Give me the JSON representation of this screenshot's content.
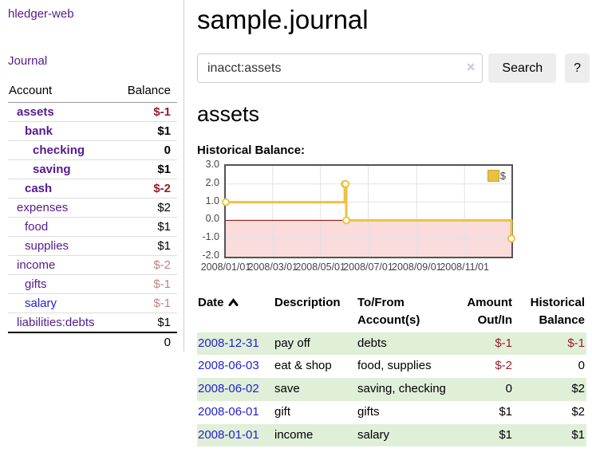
{
  "sidebar": {
    "brand": "hledger-web",
    "journal_link": "Journal",
    "table": {
      "account_header": "Account",
      "balance_header": "Balance",
      "rows": [
        {
          "name": "assets",
          "balance": "$-1",
          "depth": 1,
          "bold": true,
          "negative": true,
          "link_color": "purple"
        },
        {
          "name": "bank",
          "balance": "$1",
          "depth": 2,
          "bold": true,
          "negative": false,
          "link_color": "purple"
        },
        {
          "name": "checking",
          "balance": "0",
          "depth": 3,
          "bold": true,
          "negative": false,
          "link_color": "purple"
        },
        {
          "name": "saving",
          "balance": "$1",
          "depth": 3,
          "bold": true,
          "negative": false,
          "link_color": "purple"
        },
        {
          "name": "cash",
          "balance": "$-2",
          "depth": 2,
          "bold": true,
          "negative": true,
          "link_color": "purple"
        },
        {
          "name": "expenses",
          "balance": "$2",
          "depth": 1,
          "bold": false,
          "negative": false,
          "link_color": "purple"
        },
        {
          "name": "food",
          "balance": "$1",
          "depth": 2,
          "bold": false,
          "negative": false,
          "link_color": "purple"
        },
        {
          "name": "supplies",
          "balance": "$1",
          "depth": 2,
          "bold": false,
          "negative": false,
          "link_color": "purple"
        },
        {
          "name": "income",
          "balance": "$-2",
          "depth": 1,
          "bold": false,
          "negative": true,
          "link_color": "purple"
        },
        {
          "name": "gifts",
          "balance": "$-1",
          "depth": 2,
          "bold": false,
          "negative": true,
          "link_color": "purple"
        },
        {
          "name": "salary",
          "balance": "$-1",
          "depth": 2,
          "bold": false,
          "negative": true,
          "link_color": "blue"
        },
        {
          "name": "liabilities:debts",
          "balance": "$1",
          "depth": 1,
          "bold": false,
          "negative": false,
          "link_color": "purple"
        }
      ],
      "total": "0"
    }
  },
  "header": {
    "title": "sample.journal"
  },
  "search": {
    "query": "inacct:assets",
    "clear_icon": "×",
    "button_label": "Search",
    "help_label": "?"
  },
  "account_page": {
    "heading": "assets",
    "chart_label": "Historical Balance:"
  },
  "chart_data": {
    "type": "line",
    "step": true,
    "title": "Historical Balance",
    "series": [
      {
        "name": "$",
        "color": "#edc240",
        "points": [
          [
            "2008-01-01",
            1
          ],
          [
            "2008-06-01",
            2
          ],
          [
            "2008-06-02",
            2
          ],
          [
            "2008-06-03",
            0
          ],
          [
            "2008-12-31",
            -1
          ]
        ]
      }
    ],
    "x_range": [
      "2008-01-01",
      "2008-12-31"
    ],
    "ylim": [
      -2,
      3
    ],
    "y_ticks": [
      "3.0",
      "2.0",
      "1.0",
      "0.0",
      "-1.0",
      "-2.0"
    ],
    "x_ticks": [
      "2008/01/01",
      "2008/03/01",
      "2008/05/01",
      "2008/07/01",
      "2008/09/01",
      "2008/11/01"
    ],
    "grid": true,
    "legend_position": "top-right",
    "legend": {
      "label": "$",
      "swatch_color": "#e9c044"
    },
    "negative_region_color": "#fadcdc",
    "zero_line_color": "#8b0000",
    "grid_color": "#e2e2e2",
    "border_color": "#545454"
  },
  "transactions": {
    "headers": {
      "date": "Date",
      "description": "Description",
      "tofrom": "To/From Account(s)",
      "amount": "Amount Out/In",
      "balance": "Historical Balance"
    },
    "sort": "ascending",
    "rows": [
      {
        "date": "2008-12-31",
        "description": "pay off",
        "accounts": "debts",
        "amount": "$-1",
        "balance": "$-1",
        "amount_negative": true,
        "balance_negative": true
      },
      {
        "date": "2008-06-03",
        "description": "eat & shop",
        "accounts": "food, supplies",
        "amount": "$-2",
        "balance": "0",
        "amount_negative": true,
        "balance_negative": false
      },
      {
        "date": "2008-06-02",
        "description": "save",
        "accounts": "saving, checking",
        "amount": "0",
        "balance": "$2",
        "amount_negative": false,
        "balance_negative": false
      },
      {
        "date": "2008-06-01",
        "description": "gift",
        "accounts": "gifts",
        "amount": "$1",
        "balance": "$2",
        "amount_negative": false,
        "balance_negative": false
      },
      {
        "date": "2008-01-01",
        "description": "income",
        "accounts": "salary",
        "amount": "$1",
        "balance": "$1",
        "amount_negative": false,
        "balance_negative": false
      }
    ]
  }
}
